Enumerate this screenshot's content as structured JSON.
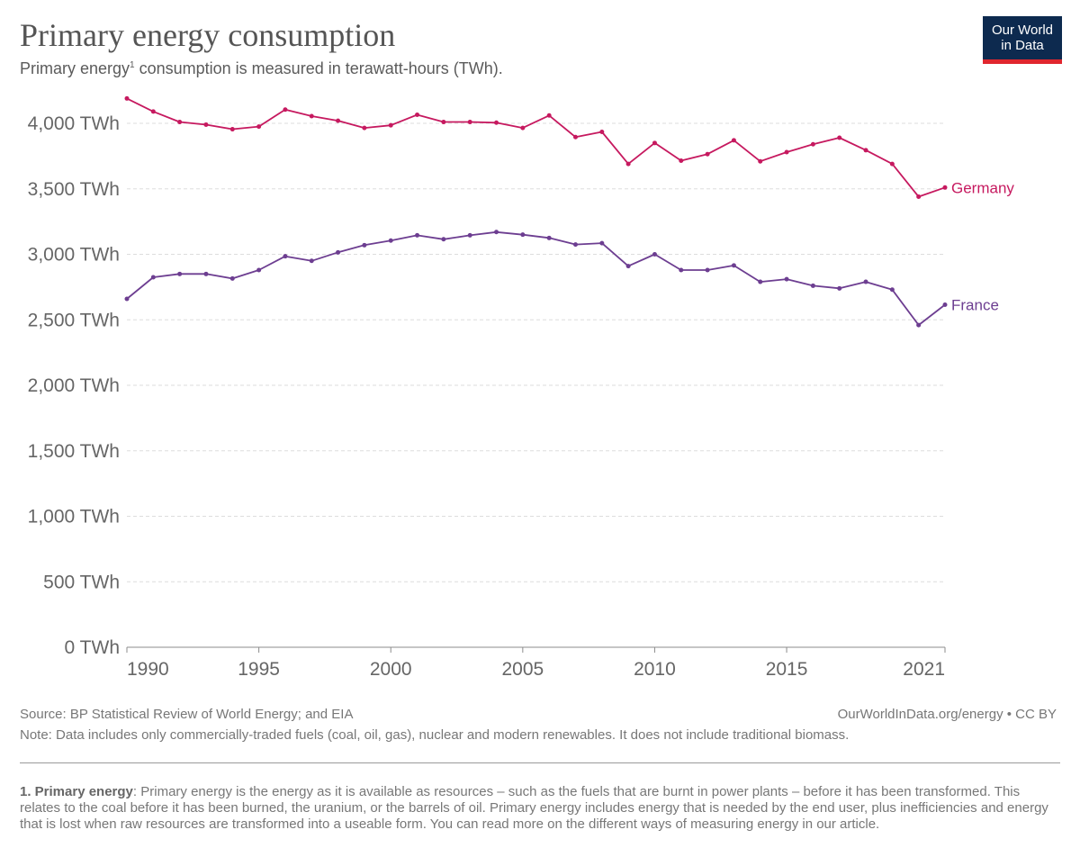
{
  "header": {
    "title": "Primary energy consumption",
    "subtitle_prefix": "Primary energy",
    "subtitle_sup": "1",
    "subtitle_rest": " consumption is measured in terawatt-hours (TWh)."
  },
  "logo": {
    "line1": "Our World",
    "line2": "in Data"
  },
  "footer": {
    "source": "Source: BP Statistical Review of World Energy; and EIA",
    "url": "OurWorldInData.org/energy • CC BY",
    "note": "Note: Data includes only commercially-traded fuels (coal, oil, gas), nuclear and modern renewables. It does not include traditional biomass.",
    "footnote_term": "1. Primary energy",
    "footnote_text": ": Primary energy is the energy as it is available as resources – such as the fuels that are burnt in power plants – before it has been transformed. This relates to the coal before it has been burned, the uranium, or the barrels of oil. Primary energy includes energy that is needed by the end user, plus inefficiencies and energy that is lost when raw resources are transformed into a useable form. You can read more on the different ways of measuring energy in our article."
  },
  "chart_data": {
    "type": "line",
    "title": "Primary energy consumption",
    "xlabel": "",
    "ylabel": "",
    "xlim": [
      1990,
      2021
    ],
    "ylim": [
      0,
      4000
    ],
    "y_ticks": [
      {
        "value": 0,
        "label": "0 TWh"
      },
      {
        "value": 500,
        "label": "500 TWh"
      },
      {
        "value": 1000,
        "label": "1,000 TWh"
      },
      {
        "value": 1500,
        "label": "1,500 TWh"
      },
      {
        "value": 2000,
        "label": "2,000 TWh"
      },
      {
        "value": 2500,
        "label": "2,500 TWh"
      },
      {
        "value": 3000,
        "label": "3,000 TWh"
      },
      {
        "value": 3500,
        "label": "3,500 TWh"
      },
      {
        "value": 4000,
        "label": "4,000 TWh"
      }
    ],
    "x_ticks": [
      {
        "value": 1990,
        "label": "1990"
      },
      {
        "value": 1995,
        "label": "1995"
      },
      {
        "value": 2000,
        "label": "2000"
      },
      {
        "value": 2005,
        "label": "2005"
      },
      {
        "value": 2010,
        "label": "2010"
      },
      {
        "value": 2015,
        "label": "2015"
      },
      {
        "value": 2021,
        "label": "2021"
      }
    ],
    "grid": "horizontal dashed",
    "x": [
      1990,
      1991,
      1992,
      1993,
      1994,
      1995,
      1996,
      1997,
      1998,
      1999,
      2000,
      2001,
      2002,
      2003,
      2004,
      2005,
      2006,
      2007,
      2008,
      2009,
      2010,
      2011,
      2012,
      2013,
      2014,
      2015,
      2016,
      2017,
      2018,
      2019,
      2020,
      2021
    ],
    "series": [
      {
        "name": "Germany",
        "color": "#c6195f",
        "values": [
          4190,
          4090,
          4010,
          3990,
          3955,
          3975,
          4105,
          4055,
          4020,
          3965,
          3985,
          4065,
          4010,
          4010,
          4005,
          3965,
          4060,
          3895,
          3935,
          3690,
          3850,
          3715,
          3765,
          3870,
          3710,
          3780,
          3840,
          3890,
          3795,
          3690,
          3440,
          3510
        ]
      },
      {
        "name": "France",
        "color": "#6d3e91",
        "values": [
          2660,
          2825,
          2850,
          2850,
          2815,
          2880,
          2985,
          2950,
          3015,
          3070,
          3105,
          3145,
          3115,
          3145,
          3170,
          3150,
          3125,
          3075,
          3085,
          2910,
          3000,
          2880,
          2880,
          2915,
          2790,
          2810,
          2760,
          2740,
          2790,
          2730,
          2460,
          2615
        ]
      }
    ]
  }
}
